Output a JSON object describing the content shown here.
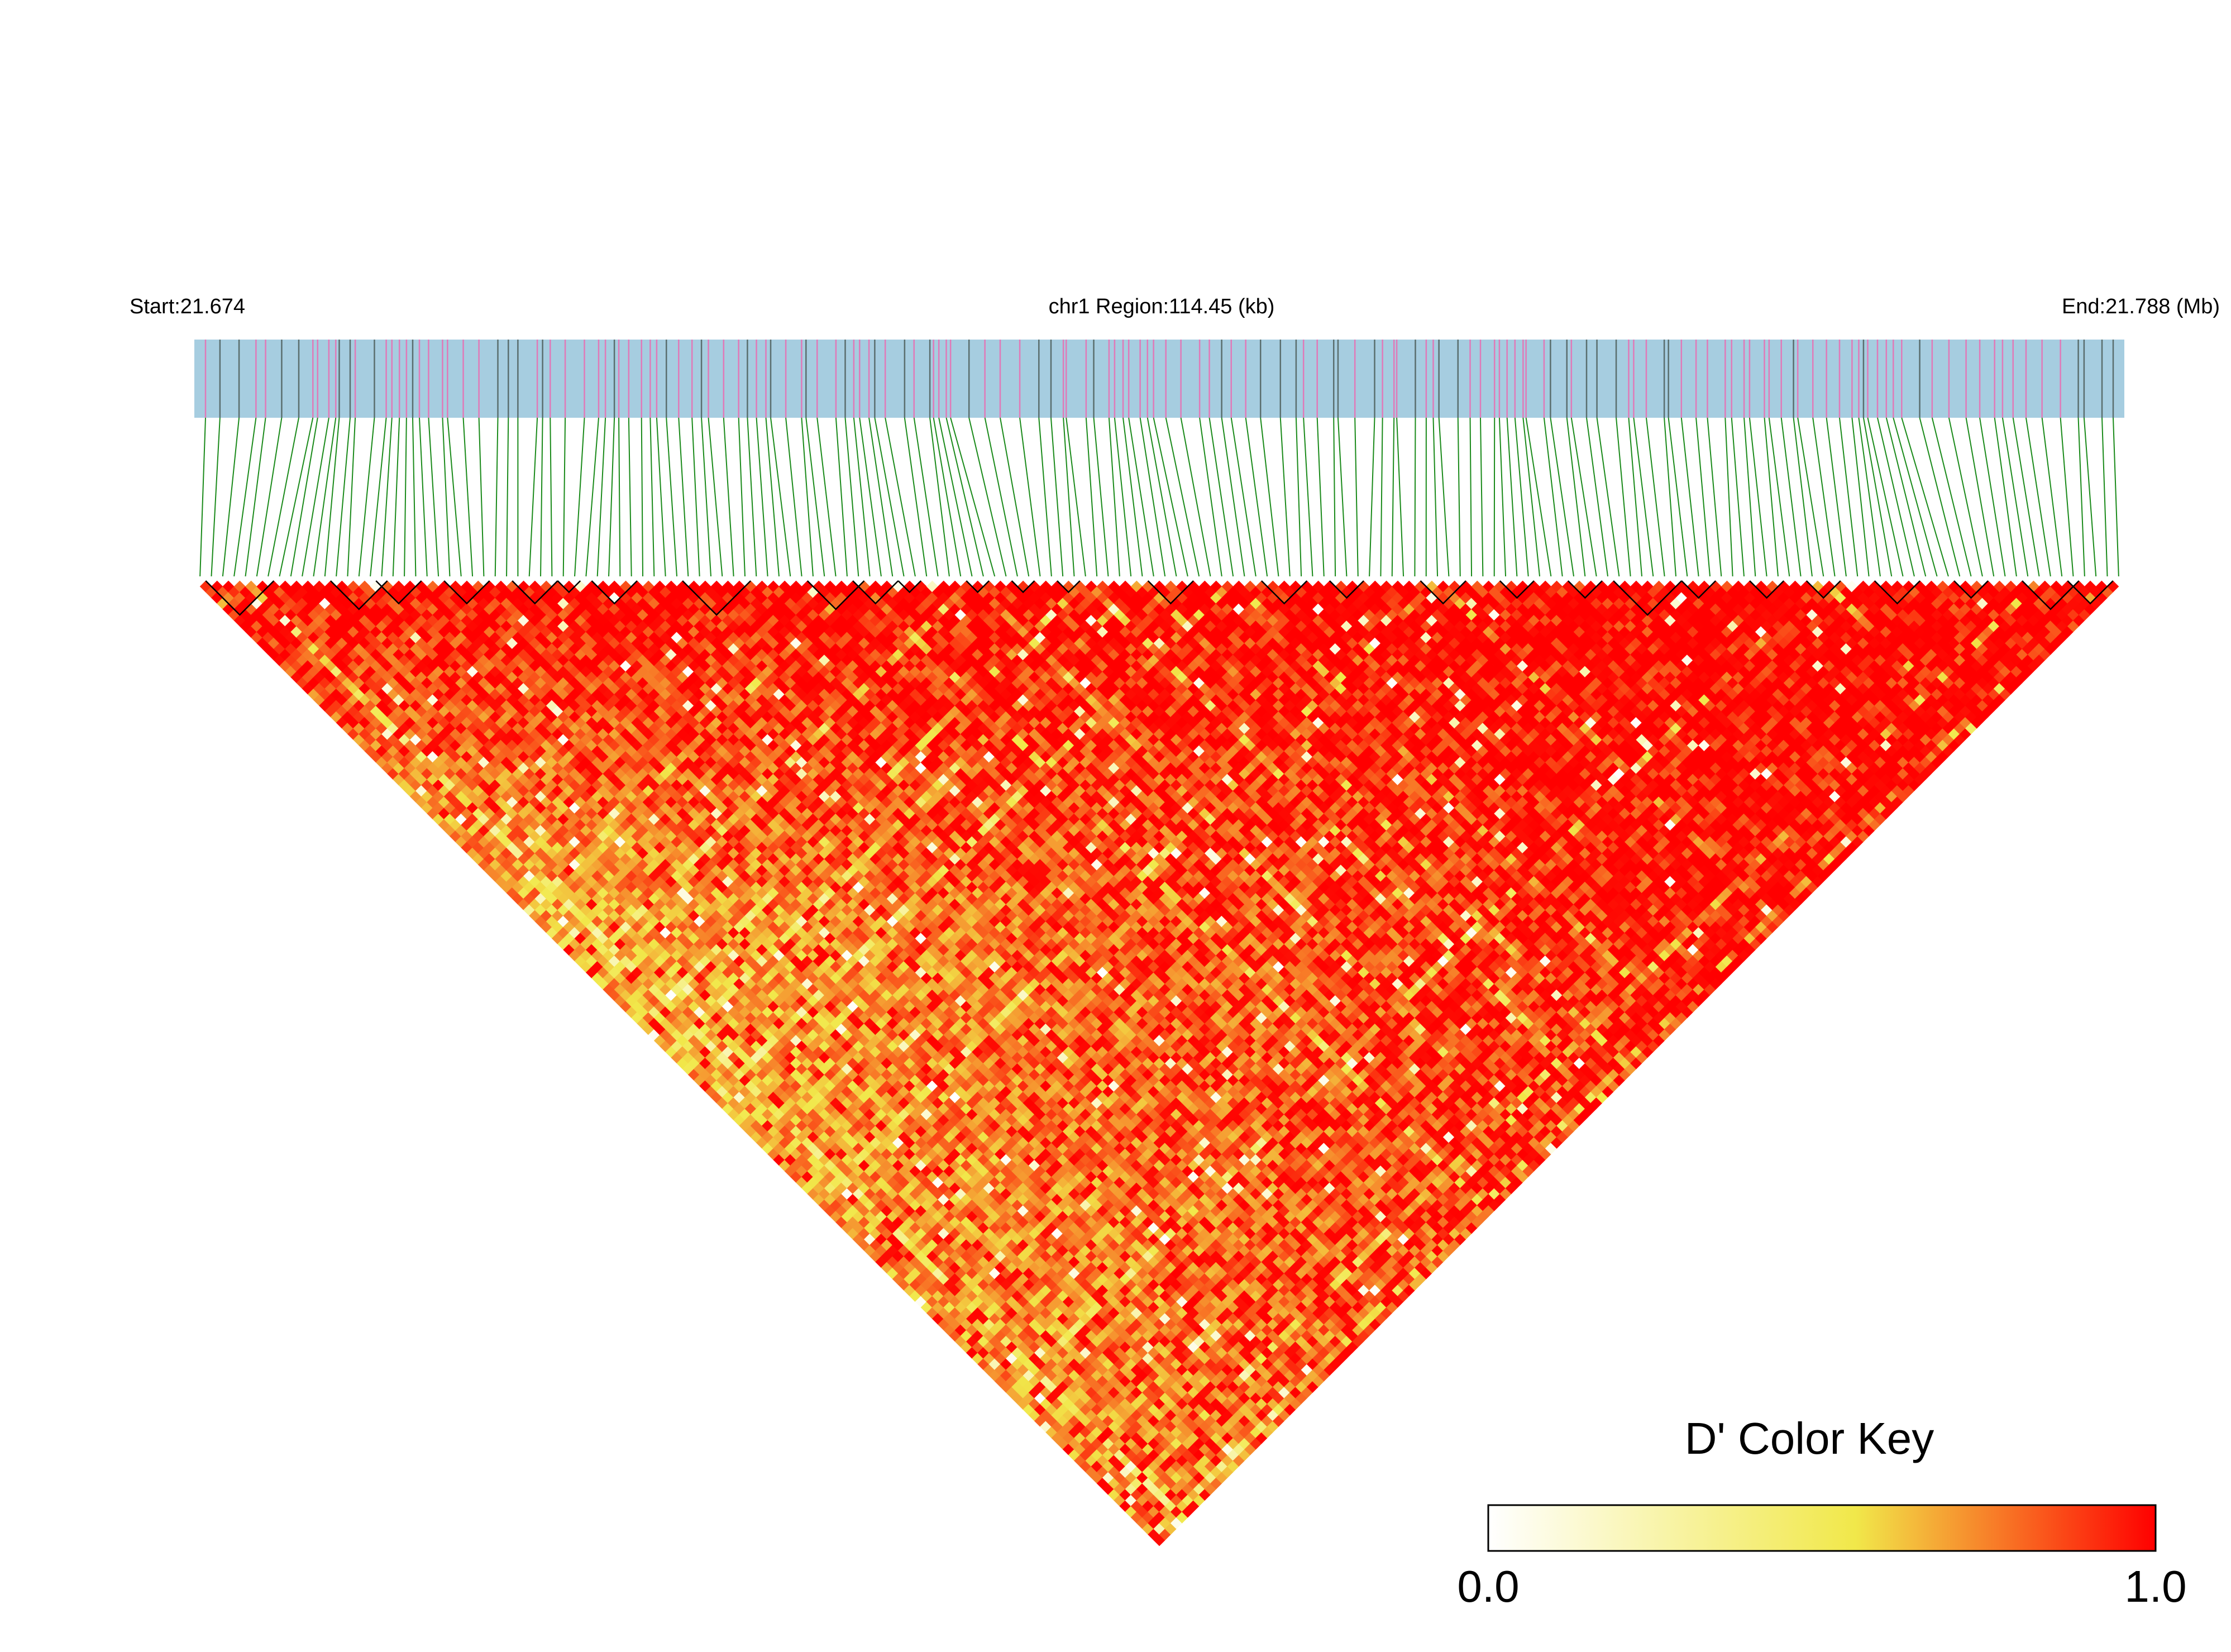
{
  "chart_data": {
    "type": "heatmap",
    "subtype": "LD triangle (D')",
    "chromosome": "chr1",
    "start_label": "Start:21.674",
    "end_label": "End:21.788 (Mb)",
    "region_label": "chr1 Region:114.45 (kb)",
    "start_mb": 21.674,
    "end_mb": 21.788,
    "region_kb": 114.45,
    "n_snps": 170,
    "color_key": {
      "title": "D' Color Key",
      "min_label": "0.0",
      "max_label": "1.0",
      "range": [
        0.0,
        1.0
      ],
      "colors": [
        "#ffffff",
        "#f1e84a",
        "#ff0000"
      ]
    },
    "block_colors": {
      "track_fill": "#a6cde0",
      "connector_lines": "#1a8a1a",
      "snp_tick_primary": "#e07ab8",
      "snp_tick_secondary": "#5a6e6e",
      "block_outline": "#000000"
    },
    "haplotype_blocks_snp_ranges": [
      [
        1,
        6
      ],
      [
        12,
        16
      ],
      [
        16,
        19
      ],
      [
        22,
        25
      ],
      [
        28,
        31
      ],
      [
        32,
        33
      ],
      [
        35,
        38
      ],
      [
        43,
        48
      ],
      [
        54,
        58
      ],
      [
        58,
        61
      ],
      [
        62,
        63
      ],
      [
        68,
        69
      ],
      [
        72,
        73
      ],
      [
        76,
        77
      ],
      [
        84,
        87
      ],
      [
        94,
        97
      ],
      [
        100,
        102
      ],
      [
        108,
        111
      ],
      [
        115,
        117
      ],
      [
        121,
        123
      ],
      [
        125,
        130
      ],
      [
        131,
        133
      ],
      [
        137,
        139
      ],
      [
        142,
        144
      ],
      [
        148,
        151
      ],
      [
        155,
        157
      ],
      [
        161,
        165
      ],
      [
        165,
        168
      ]
    ],
    "generation_note": "D' values approximated per SNP pair: mostly high (red) near diagonal and upper-right, lower (yellow) toward bottom-left region"
  }
}
